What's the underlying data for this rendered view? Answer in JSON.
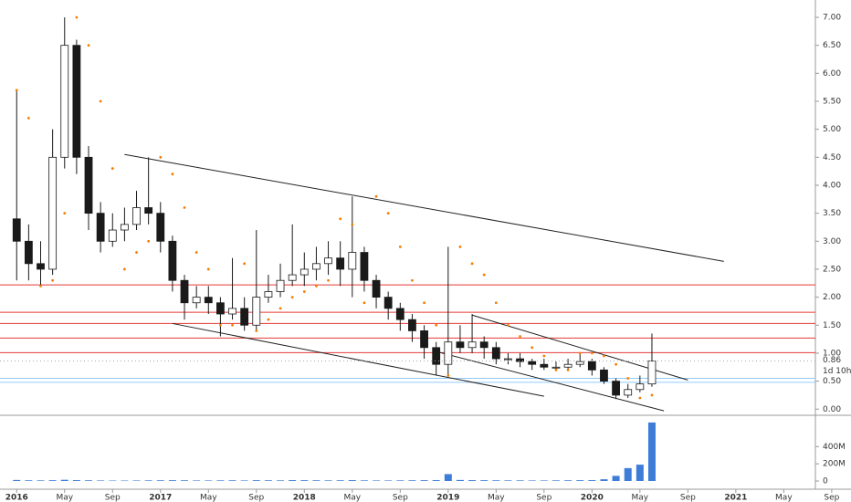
{
  "chart_data": {
    "type": "candlestick",
    "x": [
      "2016-01",
      "2016-02",
      "2016-03",
      "2016-04",
      "2016-05",
      "2016-06",
      "2016-07",
      "2016-08",
      "2016-09",
      "2016-10",
      "2016-11",
      "2016-12",
      "2017-01",
      "2017-02",
      "2017-03",
      "2017-04",
      "2017-05",
      "2017-06",
      "2017-07",
      "2017-08",
      "2017-09",
      "2017-10",
      "2017-11",
      "2017-12",
      "2018-01",
      "2018-02",
      "2018-03",
      "2018-04",
      "2018-05",
      "2018-06",
      "2018-07",
      "2018-08",
      "2018-09",
      "2018-10",
      "2018-11",
      "2018-12",
      "2019-01",
      "2019-02",
      "2019-03",
      "2019-04",
      "2019-05",
      "2019-06",
      "2019-07",
      "2019-08",
      "2019-09",
      "2019-10",
      "2019-11",
      "2019-12",
      "2020-01",
      "2020-02",
      "2020-03",
      "2020-04",
      "2020-05",
      "2020-06"
    ],
    "open": [
      3.4,
      3.0,
      2.6,
      2.5,
      4.5,
      6.5,
      4.5,
      3.5,
      3.0,
      3.2,
      3.3,
      3.6,
      3.5,
      3.0,
      2.3,
      1.9,
      2.0,
      1.9,
      1.7,
      1.8,
      1.5,
      2.0,
      2.1,
      2.3,
      2.4,
      2.5,
      2.6,
      2.7,
      2.5,
      2.8,
      2.3,
      2.0,
      1.8,
      1.6,
      1.4,
      1.1,
      0.8,
      1.2,
      1.1,
      1.2,
      1.1,
      0.9,
      0.9,
      0.85,
      0.8,
      0.75,
      0.75,
      0.8,
      0.85,
      0.7,
      0.5,
      0.25,
      0.35,
      0.45
    ],
    "high": [
      5.7,
      3.3,
      3.0,
      5.0,
      7.0,
      6.6,
      4.7,
      3.7,
      3.5,
      3.6,
      3.9,
      4.5,
      3.7,
      3.1,
      2.4,
      2.2,
      2.2,
      2.0,
      2.7,
      2.0,
      3.2,
      2.4,
      2.6,
      3.3,
      2.8,
      2.9,
      3.0,
      3.0,
      3.8,
      2.9,
      2.4,
      2.1,
      1.9,
      1.7,
      1.5,
      1.2,
      2.9,
      1.5,
      1.7,
      1.3,
      1.2,
      1.0,
      1.0,
      0.9,
      0.9,
      0.85,
      0.9,
      1.0,
      0.9,
      0.75,
      0.55,
      0.45,
      0.6,
      1.35
    ],
    "low": [
      2.3,
      2.3,
      2.2,
      2.4,
      4.3,
      4.2,
      3.2,
      2.8,
      2.9,
      3.0,
      3.2,
      3.3,
      2.8,
      2.1,
      1.6,
      1.8,
      1.7,
      1.3,
      1.6,
      1.4,
      1.4,
      1.9,
      2.0,
      2.2,
      2.2,
      2.3,
      2.4,
      2.2,
      2.0,
      2.1,
      1.8,
      1.6,
      1.4,
      1.2,
      0.9,
      0.6,
      0.6,
      1.0,
      1.0,
      0.9,
      0.8,
      0.8,
      0.75,
      0.7,
      0.7,
      0.7,
      0.7,
      0.75,
      0.6,
      0.45,
      0.18,
      0.2,
      0.3,
      0.4
    ],
    "close": [
      3.0,
      2.6,
      2.5,
      4.5,
      6.5,
      4.5,
      3.5,
      3.0,
      3.2,
      3.3,
      3.6,
      3.5,
      3.0,
      2.3,
      1.9,
      2.0,
      1.9,
      1.7,
      1.8,
      1.5,
      2.0,
      2.1,
      2.3,
      2.4,
      2.5,
      2.6,
      2.7,
      2.5,
      2.8,
      2.3,
      2.0,
      1.8,
      1.6,
      1.4,
      1.1,
      0.8,
      1.2,
      1.1,
      1.2,
      1.1,
      0.9,
      0.9,
      0.85,
      0.8,
      0.75,
      0.75,
      0.8,
      0.85,
      0.7,
      0.5,
      0.25,
      0.35,
      0.45,
      0.86
    ],
    "volume": [
      12,
      8,
      7,
      9,
      14,
      10,
      8,
      6,
      5,
      5,
      6,
      7,
      8,
      9,
      8,
      6,
      6,
      7,
      8,
      6,
      9,
      8,
      7,
      10,
      9,
      8,
      7,
      8,
      10,
      7,
      6,
      6,
      7,
      8,
      9,
      10,
      80,
      12,
      10,
      9,
      8,
      7,
      7,
      6,
      6,
      7,
      8,
      9,
      10,
      20,
      60,
      150,
      190,
      680
    ],
    "sar": [
      5.7,
      5.2,
      2.2,
      2.3,
      3.5,
      7.0,
      6.5,
      5.5,
      4.3,
      2.5,
      2.8,
      3.0,
      4.5,
      4.2,
      3.6,
      2.8,
      2.5,
      1.5,
      1.5,
      2.6,
      1.4,
      1.6,
      1.8,
      2.0,
      2.1,
      2.2,
      2.3,
      3.4,
      3.3,
      1.9,
      3.8,
      3.5,
      2.9,
      2.3,
      1.9,
      1.5,
      0.6,
      2.9,
      2.6,
      2.4,
      1.9,
      1.5,
      1.3,
      1.1,
      0.95,
      0.7,
      0.7,
      1.0,
      1.0,
      0.95,
      0.8,
      0.55,
      0.2,
      0.25
    ],
    "up_color": "#ffffff",
    "down_color": "#1a1a1a",
    "outline_color": "#1a1a1a",
    "sar_color": "#f57c00",
    "volume_color": "#3d7dd8",
    "hlines": [
      {
        "value": 2.22,
        "color": "#e53935"
      },
      {
        "value": 1.73,
        "color": "#e53935"
      },
      {
        "value": 1.53,
        "color": "#e53935"
      },
      {
        "value": 1.27,
        "color": "#e53935"
      },
      {
        "value": 1.01,
        "color": "#e53935"
      },
      {
        "value": 0.55,
        "color": "#90caf9"
      },
      {
        "value": 0.48,
        "color": "#90caf9"
      }
    ],
    "trendlines": [
      {
        "from": [
          "2016-10",
          4.55
        ],
        "to": [
          "2020-12",
          2.64
        ]
      },
      {
        "from": [
          "2017-02",
          1.53
        ],
        "to": [
          "2019-09",
          0.23
        ]
      },
      {
        "from": [
          "2019-03",
          1.68
        ],
        "to": [
          "2020-09",
          0.52
        ]
      },
      {
        "from": [
          "2018-12",
          1.03
        ],
        "to": [
          "2020-07",
          -0.03
        ]
      }
    ],
    "last_price_label": "0.86",
    "countdown": "1d 10h",
    "xlim": [
      "2015-11",
      "2021-10"
    ],
    "xticks": [
      {
        "value": "2016-01",
        "label": "2016"
      },
      {
        "value": "2016-05",
        "label": "May"
      },
      {
        "value": "2016-09",
        "label": "Sep"
      },
      {
        "value": "2017-01",
        "label": "2017"
      },
      {
        "value": "2017-05",
        "label": "May"
      },
      {
        "value": "2017-09",
        "label": "Sep"
      },
      {
        "value": "2018-01",
        "label": "2018"
      },
      {
        "value": "2018-05",
        "label": "May"
      },
      {
        "value": "2018-09",
        "label": "Sep"
      },
      {
        "value": "2019-01",
        "label": "2019"
      },
      {
        "value": "2019-05",
        "label": "May"
      },
      {
        "value": "2019-09",
        "label": "Sep"
      },
      {
        "value": "2020-01",
        "label": "2020"
      },
      {
        "value": "2020-05",
        "label": "May"
      },
      {
        "value": "2020-09",
        "label": "Sep"
      },
      {
        "value": "2021-01",
        "label": "2021"
      },
      {
        "value": "2021-05",
        "label": "May"
      },
      {
        "value": "2021-09",
        "label": "Sep"
      }
    ],
    "ylim": [
      -0.11,
      7.31
    ],
    "yticks": [
      {
        "value": 0,
        "label": "0.00"
      },
      {
        "value": 0.5,
        "label": "0.50"
      },
      {
        "value": 1,
        "label": "1.00"
      },
      {
        "value": 1.5,
        "label": "1.50"
      },
      {
        "value": 2,
        "label": "2.00"
      },
      {
        "value": 2.5,
        "label": "2.50"
      },
      {
        "value": 3,
        "label": "3.00"
      },
      {
        "value": 3.5,
        "label": "3.50"
      },
      {
        "value": 4,
        "label": "4.00"
      },
      {
        "value": 4.5,
        "label": "4.50"
      },
      {
        "value": 5,
        "label": "5.00"
      },
      {
        "value": 5.5,
        "label": "5.50"
      },
      {
        "value": 6,
        "label": "6.00"
      },
      {
        "value": 6.5,
        "label": "6.50"
      },
      {
        "value": 7,
        "label": "7.00"
      }
    ],
    "volume_ylim": [
      0,
      700
    ],
    "volume_ticks": [
      0,
      {
        "value": 200,
        "label": "200M"
      },
      {
        "value": 400,
        "label": "400M"
      }
    ]
  }
}
